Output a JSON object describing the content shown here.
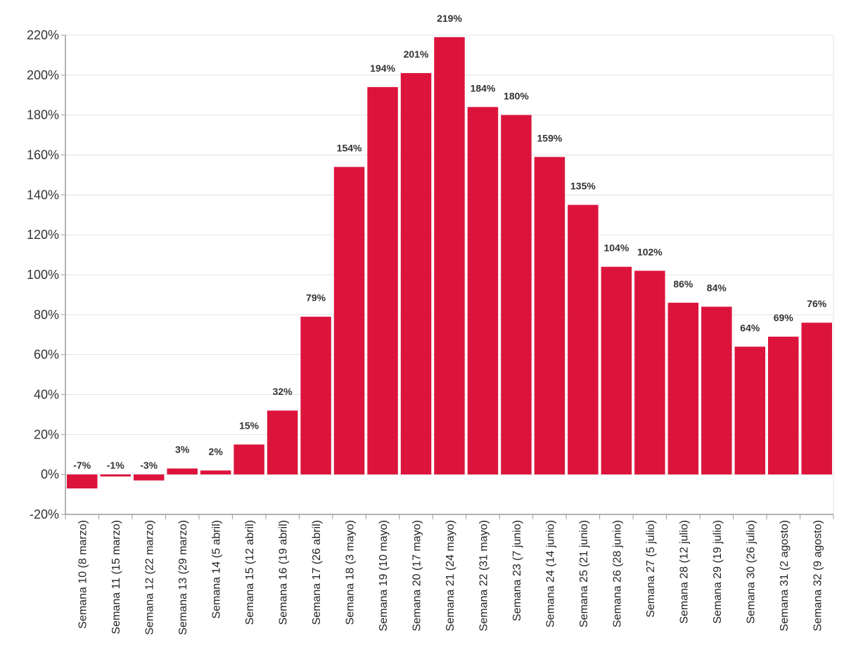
{
  "chart_data": {
    "type": "bar",
    "title": "",
    "xlabel": "",
    "ylabel": "",
    "ylim": [
      -20,
      220
    ],
    "yticks": [
      -20,
      0,
      20,
      40,
      60,
      80,
      100,
      120,
      140,
      160,
      180,
      200,
      220
    ],
    "ytick_suffix": "%",
    "grid": true,
    "bar_color": "#dc143c",
    "categories": [
      "Semana 10 (8 marzo)",
      "Semana 11 (15 marzo)",
      "Semana 12 (22 marzo)",
      "Semana 13 (29 marzo)",
      "Semana 14 (5 abril)",
      "Semana 15 (12 abril)",
      "Semana 16 (19 abril)",
      "Semana 17 (26 abril)",
      "Semana 18 (3 mayo)",
      "Semana 19 (10 mayo)",
      "Semana 20 (17 mayo)",
      "Semana 21 (24 mayo)",
      "Semana 22 (31 mayo)",
      "Semana 23 (7 junio)",
      "Semana 24 (14 junio)",
      "Semana 25 (21 junio)",
      "Semana 26 (28 junio)",
      "Semana 27 (5 julio)",
      "Semana 28 (12 julio)",
      "Semana 29 (19 julio)",
      "Semana 30 (26 julio)",
      "Semana 31 (2 agosto)",
      "Semana 32 (9 agosto)"
    ],
    "values": [
      -7,
      -1,
      -3,
      3,
      2,
      15,
      32,
      79,
      154,
      194,
      201,
      219,
      184,
      180,
      159,
      135,
      104,
      102,
      86,
      84,
      64,
      69,
      76
    ],
    "data_labels": [
      "-7%",
      "-1%",
      "-3%",
      "3%",
      "2%",
      "15%",
      "32%",
      "79%",
      "154%",
      "194%",
      "201%",
      "219%",
      "184%",
      "180%",
      "159%",
      "135%",
      "104%",
      "102%",
      "86%",
      "84%",
      "64%",
      "69%",
      "76%"
    ]
  }
}
